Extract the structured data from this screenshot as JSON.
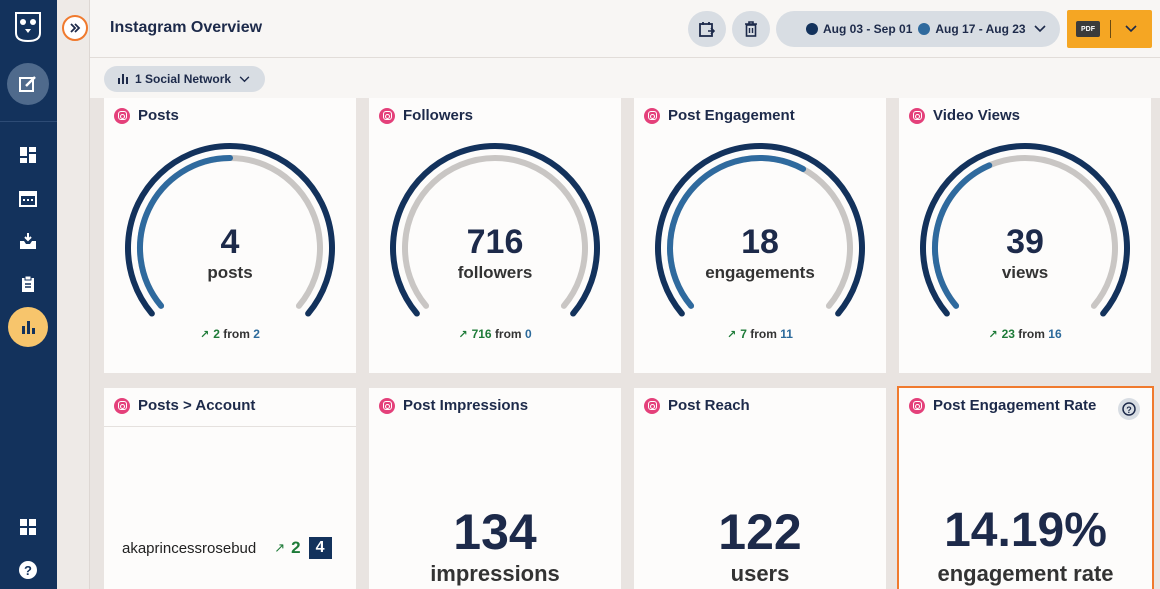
{
  "header": {
    "title": "Instagram Overview",
    "date_primary": "Aug 03 - Sep 01",
    "date_compare": "Aug 17 - Aug 23",
    "pdf_label": "PDF"
  },
  "filter": {
    "label": "1 Social Network"
  },
  "colors": {
    "primary_dot": "#13325c",
    "compare_dot": "#2f6a9e",
    "accent": "#f5a623",
    "highlight": "#f07a2e",
    "instagram": "#e4407a"
  },
  "metrics": [
    {
      "title": "Posts",
      "value": "4",
      "unit": "posts",
      "change": "2",
      "from_label": "from",
      "previous": "2",
      "outer_fraction": 1.0,
      "inner_fraction": 0.5
    },
    {
      "title": "Followers",
      "value": "716",
      "unit": "followers",
      "change": "716",
      "from_label": "from",
      "previous": "0",
      "outer_fraction": 1.0,
      "inner_fraction": 0.0
    },
    {
      "title": "Post Engagement",
      "value": "18",
      "unit": "engagements",
      "change": "7",
      "from_label": "from",
      "previous": "11",
      "outer_fraction": 1.0,
      "inner_fraction": 0.61
    },
    {
      "title": "Video Views",
      "value": "39",
      "unit": "views",
      "change": "23",
      "from_label": "from",
      "previous": "16",
      "outer_fraction": 1.0,
      "inner_fraction": 0.41
    }
  ],
  "account_card": {
    "title": "Posts > Account",
    "account": "akaprincessrosebud",
    "change": "2",
    "current": "4"
  },
  "big_cards": [
    {
      "title": "Post Impressions",
      "value": "134",
      "unit": "impressions"
    },
    {
      "title": "Post Reach",
      "value": "122",
      "unit": "users"
    },
    {
      "title": "Post Engagement Rate",
      "value": "14.19%",
      "unit": "engagement rate"
    }
  ],
  "icons": [
    "owl-logo-icon",
    "compose-icon",
    "dashboard-icon",
    "calendar-icon",
    "inbox-icon",
    "clipboard-icon",
    "analytics-icon",
    "apps-icon",
    "help-icon",
    "expand-icon",
    "schedule-icon",
    "trash-icon",
    "chevron-down-icon",
    "bar-chart-icon",
    "instagram-icon"
  ]
}
